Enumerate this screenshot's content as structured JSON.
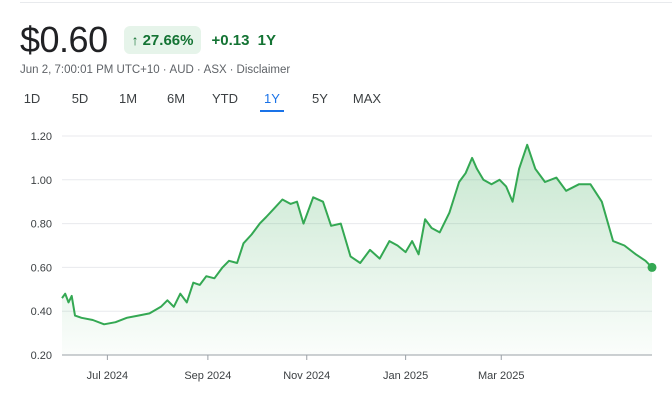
{
  "quote": {
    "price": "$0.60",
    "change_percent": "27.66%",
    "change_value": "+0.13",
    "period": "1Y",
    "up_arrow_icon": "arrow-up-icon",
    "positive_color": "#137333",
    "positive_bg": "#e6f4ea"
  },
  "meta": {
    "timestamp": "Jun 2, 7:00:01 PM UTC+10",
    "currency": "AUD",
    "exchange": "ASX",
    "disclaimer": "Disclaimer"
  },
  "tabs": [
    {
      "label": "1D",
      "active": false
    },
    {
      "label": "5D",
      "active": false
    },
    {
      "label": "1M",
      "active": false
    },
    {
      "label": "6M",
      "active": false
    },
    {
      "label": "YTD",
      "active": false
    },
    {
      "label": "1Y",
      "active": true
    },
    {
      "label": "5Y",
      "active": false
    },
    {
      "label": "MAX",
      "active": false
    }
  ],
  "chart_data": {
    "type": "area",
    "xlabel": "",
    "ylabel": "",
    "ylim": [
      0.2,
      1.2
    ],
    "xlim": [
      "2024-06-03",
      "2025-06-02"
    ],
    "y_ticks": [
      "0.20",
      "0.40",
      "0.60",
      "0.80",
      "1.00",
      "1.20"
    ],
    "x_ticks": [
      {
        "label": "Jul 2024",
        "date": "2024-07-01"
      },
      {
        "label": "Sep 2024",
        "date": "2024-09-01"
      },
      {
        "label": "Nov 2024",
        "date": "2024-11-01"
      },
      {
        "label": "Jan 2025",
        "date": "2025-01-01"
      },
      {
        "label": "Mar 2025",
        "date": "2025-03-01"
      }
    ],
    "grid": true,
    "line_color": "#34a853",
    "series": [
      {
        "x": [
          "2024-06-03",
          "2024-06-05",
          "2024-06-07",
          "2024-06-09",
          "2024-06-11",
          "2024-06-15",
          "2024-06-22",
          "2024-06-29",
          "2024-07-06",
          "2024-07-13",
          "2024-07-20",
          "2024-07-27",
          "2024-08-03",
          "2024-08-07",
          "2024-08-11",
          "2024-08-15",
          "2024-08-19",
          "2024-08-23",
          "2024-08-27",
          "2024-08-31",
          "2024-09-05",
          "2024-09-10",
          "2024-09-14",
          "2024-09-19",
          "2024-09-23",
          "2024-09-28",
          "2024-10-03",
          "2024-10-07",
          "2024-10-12",
          "2024-10-17",
          "2024-10-22",
          "2024-10-26",
          "2024-10-30",
          "2024-11-05",
          "2024-11-11",
          "2024-11-16",
          "2024-11-22",
          "2024-11-28",
          "2024-12-04",
          "2024-12-10",
          "2024-12-16",
          "2024-12-22",
          "2024-12-27",
          "2025-01-01",
          "2025-01-05",
          "2025-01-09",
          "2025-01-13",
          "2025-01-17",
          "2025-01-22",
          "2025-01-28",
          "2025-02-03",
          "2025-02-07",
          "2025-02-11",
          "2025-02-14",
          "2025-02-18",
          "2025-02-23",
          "2025-02-28",
          "2025-03-04",
          "2025-03-08",
          "2025-03-12",
          "2025-03-17",
          "2025-03-22",
          "2025-03-28",
          "2025-04-04",
          "2025-04-10",
          "2025-04-18",
          "2025-04-25",
          "2025-05-02",
          "2025-05-09",
          "2025-05-16",
          "2025-05-23",
          "2025-05-29",
          "2025-06-02"
        ],
        "values": [
          0.46,
          0.48,
          0.44,
          0.47,
          0.38,
          0.37,
          0.36,
          0.34,
          0.35,
          0.37,
          0.38,
          0.39,
          0.42,
          0.45,
          0.42,
          0.48,
          0.44,
          0.53,
          0.52,
          0.56,
          0.55,
          0.6,
          0.63,
          0.62,
          0.71,
          0.75,
          0.8,
          0.83,
          0.87,
          0.91,
          0.89,
          0.9,
          0.8,
          0.92,
          0.9,
          0.79,
          0.8,
          0.65,
          0.62,
          0.68,
          0.64,
          0.72,
          0.7,
          0.67,
          0.72,
          0.66,
          0.82,
          0.78,
          0.76,
          0.85,
          0.99,
          1.03,
          1.1,
          1.05,
          1.0,
          0.98,
          1.0,
          0.97,
          0.9,
          1.05,
          1.16,
          1.05,
          0.99,
          1.01,
          0.95,
          0.98,
          0.98,
          0.9,
          0.72,
          0.7,
          0.66,
          0.63,
          0.6
        ]
      }
    ]
  }
}
